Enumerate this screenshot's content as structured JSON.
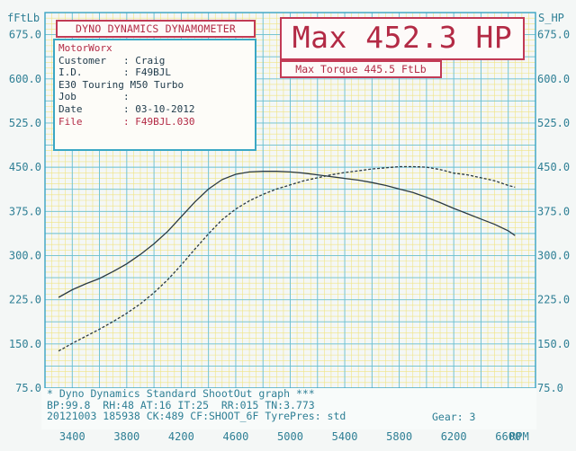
{
  "labels": {
    "left_unit": "fFtLb",
    "right_unit": "S_HP",
    "rpm_unit": "RPM"
  },
  "dyno_title": "DYNO DYNAMICS DYNAMOMETER",
  "info": {
    "shop": "MotorWorx",
    "customer_label": "Customer",
    "customer": "Craig",
    "id_label": "I.D.",
    "id": "F49BJL",
    "vehicle": "E30 Touring M50 Turbo",
    "job_label": "Job",
    "job": "",
    "date_label": "Date",
    "date": "03-10-2012",
    "file_label": "File",
    "file": "F49BJL.030"
  },
  "max_hp": "Max 452.3 HP",
  "max_torque": "Max Torque 445.5 FtLb",
  "footer": {
    "line1": "* Dyno Dynamics Standard ShootOut graph ***",
    "line2": "BP:99.8  RH:48 AT:16 IT:25  RR:015 TN:3.773",
    "line3": "20121003 185938 CK:489 CF:SHOOT_6F TyrePres: std",
    "gear": "Gear: 3"
  },
  "chart_data": {
    "type": "line",
    "xlabel": "RPM",
    "ylabel_left": "fFtLb",
    "ylabel_right": "S_HP",
    "xlim": [
      3200,
      6800
    ],
    "ylim": [
      75,
      712.5
    ],
    "x_ticks": [
      3400,
      3800,
      4200,
      4600,
      5000,
      5400,
      5800,
      6200,
      6600
    ],
    "y_ticks": [
      75.0,
      150.0,
      225.0,
      300.0,
      375.0,
      450.0,
      525.0,
      600.0,
      675.0
    ],
    "y_tick_labels": [
      "75.0",
      "150.0",
      "225.0",
      "300.0",
      "375.0",
      "450.0",
      "525.0",
      "600.0",
      "675.0"
    ],
    "right_y_tick_labels": [
      "75.0",
      "150.0",
      "225.0",
      "300.0",
      "375.0",
      "450.0",
      "525.0",
      "600.0",
      "675.0"
    ],
    "grid": true,
    "series": [
      {
        "style": "solid",
        "color": "#2b3a42",
        "x": [
          3300,
          3400,
          3500,
          3600,
          3700,
          3800,
          3900,
          4000,
          4100,
          4200,
          4300,
          4400,
          4500,
          4600,
          4700,
          4800,
          4900,
          5000,
          5100,
          5200,
          5300,
          5400,
          5500,
          5600,
          5700,
          5800,
          5900,
          6000,
          6100,
          6200,
          6300,
          6400,
          6500,
          6600,
          6650
        ],
        "y": [
          229,
          242,
          252,
          261,
          273,
          286,
          302,
          320,
          341,
          366,
          391,
          413,
          429,
          438,
          442,
          443,
          443,
          442,
          440,
          437,
          434,
          431,
          428,
          424,
          419,
          413,
          407,
          399,
          390,
          380,
          371,
          362,
          353,
          342,
          334
        ]
      },
      {
        "style": "dashed",
        "color": "#2b3a42",
        "x": [
          3300,
          3400,
          3500,
          3600,
          3700,
          3800,
          3900,
          4000,
          4100,
          4200,
          4300,
          4400,
          4500,
          4600,
          4700,
          4800,
          4900,
          5000,
          5100,
          5200,
          5300,
          5400,
          5500,
          5600,
          5700,
          5800,
          5900,
          6000,
          6100,
          6200,
          6300,
          6400,
          6500,
          6600,
          6650
        ],
        "y": [
          138,
          151,
          163,
          175,
          188,
          202,
          218,
          237,
          259,
          284,
          311,
          337,
          361,
          379,
          393,
          404,
          413,
          420,
          427,
          432,
          437,
          441,
          444,
          447,
          449,
          451,
          451,
          450,
          446,
          440,
          437,
          432,
          427,
          419,
          416
        ]
      }
    ]
  }
}
